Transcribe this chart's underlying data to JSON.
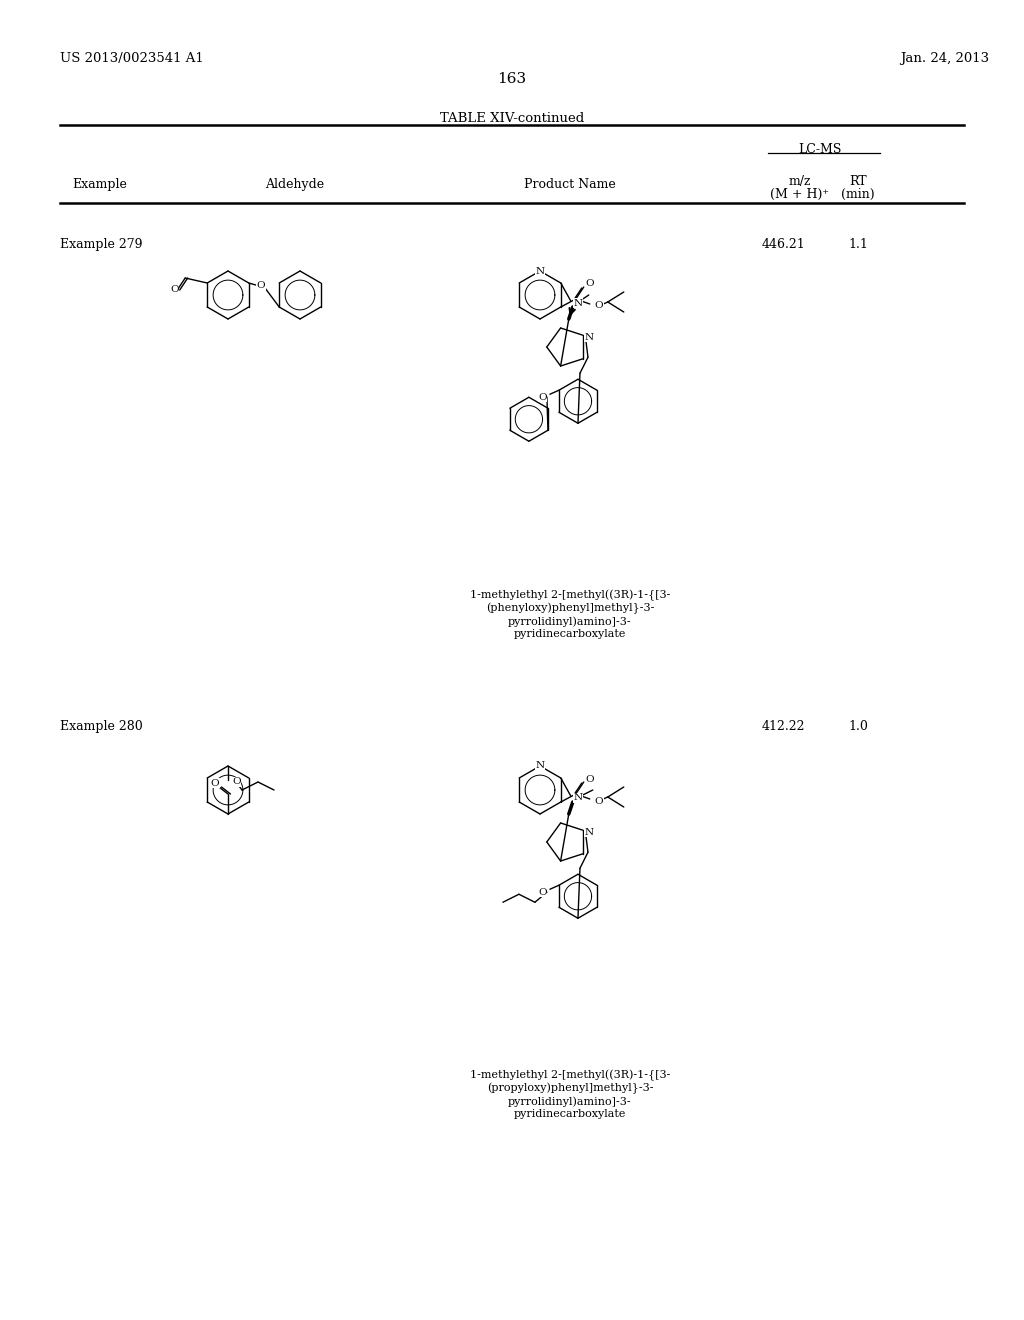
{
  "background_color": "#ffffff",
  "page_number": "163",
  "patent_number": "US 2013/0023541 A1",
  "patent_date": "Jan. 24, 2013",
  "table_title": "TABLE XIV-continued",
  "col_example": "Example",
  "col_aldehyde": "Aldehyde",
  "col_product": "Product Name",
  "col_lcms": "LC-MS",
  "col_mz": "m/z",
  "col_mz2": "(M + H)⁺",
  "col_rt": "RT",
  "col_rt2": "(min)",
  "ex279": "Example 279",
  "ex279_mz": "446.21",
  "ex279_rt": "1.1",
  "ex279_name": "1-methylethyl 2-[methyl((3R)-1-{[3-\n(phenyloxy)phenyl]methyl}-3-\npyrrolidinyl)amino]-3-\npyridinecarboxylate",
  "ex280": "Example 280",
  "ex280_mz": "412.22",
  "ex280_rt": "1.0",
  "ex280_name": "1-methylethyl 2-[methyl((3R)-1-{[3-\n(propyloxy)phenyl]methyl}-3-\npyrrolidinyl)amino]-3-\npyridinecarboxylate"
}
